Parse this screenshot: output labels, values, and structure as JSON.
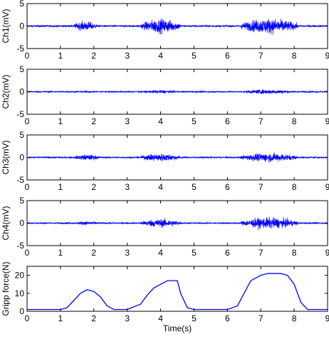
{
  "chart_data": [
    {
      "type": "line",
      "ylabel": "Ch1(mV)",
      "xlim": [
        0,
        9
      ],
      "ylim": [
        -5,
        5
      ],
      "xticks": [
        "0",
        "1",
        "2",
        "3",
        "4",
        "5",
        "6",
        "7",
        "8",
        "9"
      ],
      "yticks": [
        "-5",
        "0",
        "5"
      ],
      "line_color": "#0000ff",
      "noise_amplitude": 0.35,
      "bursts": [
        {
          "start": 1.4,
          "end": 2.1,
          "amplitude": 3.0
        },
        {
          "start": 3.4,
          "end": 4.6,
          "amplitude": 4.5
        },
        {
          "start": 6.4,
          "end": 8.1,
          "amplitude": 4.8
        }
      ]
    },
    {
      "type": "line",
      "ylabel": "Ch2(mV)",
      "xlim": [
        0,
        9
      ],
      "ylim": [
        -5,
        5
      ],
      "xticks": [
        "0",
        "1",
        "2",
        "3",
        "4",
        "5",
        "6",
        "7",
        "8",
        "9"
      ],
      "yticks": [
        "-5",
        "0",
        "5"
      ],
      "line_color": "#0000ff",
      "noise_amplitude": 0.3,
      "bursts": [
        {
          "start": 1.4,
          "end": 2.2,
          "amplitude": 0.7
        },
        {
          "start": 3.4,
          "end": 4.6,
          "amplitude": 1.0
        },
        {
          "start": 6.4,
          "end": 8.0,
          "amplitude": 1.4
        }
      ]
    },
    {
      "type": "line",
      "ylabel": "Ch3(mV)",
      "xlim": [
        0,
        9
      ],
      "ylim": [
        -5,
        5
      ],
      "xticks": [
        "0",
        "1",
        "2",
        "3",
        "4",
        "5",
        "6",
        "7",
        "8",
        "9"
      ],
      "yticks": [
        "-5",
        "0",
        "5"
      ],
      "line_color": "#0000ff",
      "noise_amplitude": 0.3,
      "bursts": [
        {
          "start": 1.4,
          "end": 2.2,
          "amplitude": 1.8
        },
        {
          "start": 3.4,
          "end": 4.6,
          "amplitude": 2.5
        },
        {
          "start": 6.4,
          "end": 8.1,
          "amplitude": 2.8
        }
      ]
    },
    {
      "type": "line",
      "ylabel": "Ch4(mV)",
      "xlim": [
        0,
        9
      ],
      "ylim": [
        -5,
        5
      ],
      "xticks": [
        "0",
        "1",
        "2",
        "3",
        "4",
        "5",
        "6",
        "7",
        "8",
        "9"
      ],
      "yticks": [
        "-5",
        "0",
        "5"
      ],
      "line_color": "#0000ff",
      "noise_amplitude": 0.3,
      "bursts": [
        {
          "start": 1.4,
          "end": 2.2,
          "amplitude": 1.2
        },
        {
          "start": 3.4,
          "end": 4.6,
          "amplitude": 2.6
        },
        {
          "start": 6.4,
          "end": 8.1,
          "amplitude": 3.5
        }
      ]
    },
    {
      "type": "line",
      "ylabel": "Gripp force(N)",
      "xlabel": "Time(s)",
      "xlim": [
        0,
        9
      ],
      "ylim": [
        0,
        25
      ],
      "xticks": [
        "0",
        "1",
        "2",
        "3",
        "4",
        "5",
        "6",
        "7",
        "8",
        "9"
      ],
      "yticks": [
        "0",
        "10",
        "20"
      ],
      "line_color": "#0000ff",
      "x": [
        0,
        1.0,
        1.2,
        1.4,
        1.6,
        1.8,
        2.0,
        2.2,
        2.4,
        2.6,
        3.0,
        3.4,
        3.6,
        3.8,
        4.0,
        4.2,
        4.5,
        4.6,
        4.8,
        5.0,
        6.0,
        6.3,
        6.5,
        6.7,
        7.0,
        7.2,
        7.6,
        7.8,
        8.0,
        8.2,
        8.4,
        9.0
      ],
      "y": [
        1,
        1,
        2,
        6,
        10,
        12,
        11,
        8,
        3,
        1,
        1,
        4,
        9,
        13,
        15,
        17,
        17,
        10,
        2,
        1,
        1,
        3,
        10,
        17,
        20,
        21,
        21,
        20,
        15,
        5,
        1,
        1
      ]
    }
  ]
}
